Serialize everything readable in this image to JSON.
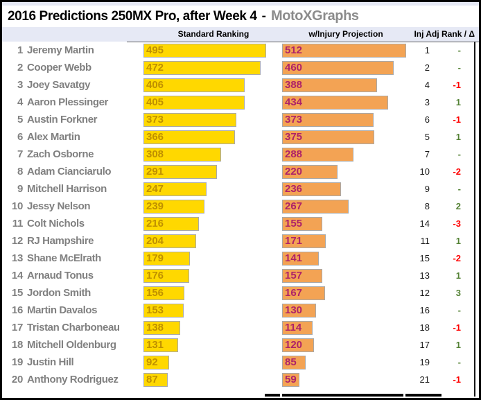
{
  "header": {
    "title_main": "2016 Predictions 250MX Pro, after Week 4",
    "title_separator": "-",
    "title_brand": "MotoXGraphs"
  },
  "columns": {
    "standard": "Standard Ranking",
    "injury": "w/Injury Projection",
    "adj": "Inj Adj Rank / Δ"
  },
  "colors": {
    "standard_bar": "#FFD800",
    "standard_value": "#BF9000",
    "injury_bar": "#F3A354",
    "injury_value": "#AE2268",
    "name_text": "#808080",
    "delta_positive": "#548235",
    "delta_negative": "#FF0000",
    "header_band": "#E6E9F5",
    "brand_text": "#8C8C8C"
  },
  "rows": [
    {
      "rank": 1,
      "name": "Jeremy Martin",
      "standard": 495,
      "injury": 512,
      "adj_rank": 1,
      "delta": "-"
    },
    {
      "rank": 2,
      "name": "Cooper Webb",
      "standard": 472,
      "injury": 460,
      "adj_rank": 2,
      "delta": "-"
    },
    {
      "rank": 3,
      "name": "Joey Savatgy",
      "standard": 406,
      "injury": 388,
      "adj_rank": 4,
      "delta": "-1"
    },
    {
      "rank": 4,
      "name": "Aaron Plessinger",
      "standard": 405,
      "injury": 434,
      "adj_rank": 3,
      "delta": "1"
    },
    {
      "rank": 5,
      "name": "Austin Forkner",
      "standard": 373,
      "injury": 373,
      "adj_rank": 6,
      "delta": "-1"
    },
    {
      "rank": 6,
      "name": "Alex Martin",
      "standard": 366,
      "injury": 375,
      "adj_rank": 5,
      "delta": "1"
    },
    {
      "rank": 7,
      "name": "Zach Osborne",
      "standard": 308,
      "injury": 288,
      "adj_rank": 7,
      "delta": "-"
    },
    {
      "rank": 8,
      "name": "Adam Cianciarulo",
      "standard": 291,
      "injury": 220,
      "adj_rank": 10,
      "delta": "-2"
    },
    {
      "rank": 9,
      "name": "Mitchell Harrison",
      "standard": 247,
      "injury": 236,
      "adj_rank": 9,
      "delta": "-"
    },
    {
      "rank": 10,
      "name": "Jessy Nelson",
      "standard": 239,
      "injury": 267,
      "adj_rank": 8,
      "delta": "2"
    },
    {
      "rank": 11,
      "name": "Colt Nichols",
      "standard": 216,
      "injury": 155,
      "adj_rank": 14,
      "delta": "-3"
    },
    {
      "rank": 12,
      "name": "RJ Hampshire",
      "standard": 204,
      "injury": 171,
      "adj_rank": 11,
      "delta": "1"
    },
    {
      "rank": 13,
      "name": "Shane McElrath",
      "standard": 179,
      "injury": 141,
      "adj_rank": 15,
      "delta": "-2"
    },
    {
      "rank": 14,
      "name": "Arnaud Tonus",
      "standard": 176,
      "injury": 157,
      "adj_rank": 13,
      "delta": "1"
    },
    {
      "rank": 15,
      "name": "Jordon Smith",
      "standard": 156,
      "injury": 167,
      "adj_rank": 12,
      "delta": "3"
    },
    {
      "rank": 16,
      "name": "Martin Davalos",
      "standard": 153,
      "injury": 130,
      "adj_rank": 16,
      "delta": "-"
    },
    {
      "rank": 17,
      "name": "Tristan Charboneau",
      "standard": 138,
      "injury": 114,
      "adj_rank": 18,
      "delta": "-1"
    },
    {
      "rank": 18,
      "name": "Mitchell Oldenburg",
      "standard": 131,
      "injury": 120,
      "adj_rank": 17,
      "delta": "1"
    },
    {
      "rank": 19,
      "name": "Justin Hill",
      "standard": 92,
      "injury": 85,
      "adj_rank": 19,
      "delta": "-"
    },
    {
      "rank": 20,
      "name": "Anthony Rodriguez",
      "standard": 87,
      "injury": 59,
      "adj_rank": 21,
      "delta": "-1"
    }
  ],
  "chart_data": {
    "type": "bar",
    "orientation": "horizontal",
    "title": "2016 Predictions 250MX Pro, after Week 4 - MotoXGraphs",
    "categories": [
      "Jeremy Martin",
      "Cooper Webb",
      "Joey Savatgy",
      "Aaron Plessinger",
      "Austin Forkner",
      "Alex Martin",
      "Zach Osborne",
      "Adam Cianciarulo",
      "Mitchell Harrison",
      "Jessy Nelson",
      "Colt Nichols",
      "RJ Hampshire",
      "Shane McElrath",
      "Arnaud Tonus",
      "Jordon Smith",
      "Martin Davalos",
      "Tristan Charboneau",
      "Mitchell Oldenburg",
      "Justin Hill",
      "Anthony Rodriguez"
    ],
    "series": [
      {
        "name": "Standard Ranking",
        "color": "#FFD800",
        "values": [
          495,
          472,
          406,
          405,
          373,
          366,
          308,
          291,
          247,
          239,
          216,
          204,
          179,
          176,
          156,
          153,
          138,
          131,
          92,
          87
        ]
      },
      {
        "name": "w/Injury Projection",
        "color": "#F3A354",
        "values": [
          512,
          460,
          388,
          434,
          373,
          375,
          288,
          220,
          236,
          267,
          155,
          171,
          141,
          157,
          167,
          130,
          114,
          120,
          85,
          59
        ]
      }
    ],
    "annotations": {
      "inj_adj_rank": [
        1,
        2,
        4,
        3,
        6,
        5,
        7,
        10,
        9,
        8,
        14,
        11,
        15,
        13,
        12,
        16,
        18,
        17,
        19,
        21
      ],
      "delta": [
        "-",
        "-",
        "-1",
        "1",
        "-1",
        "1",
        "-",
        "-2",
        "-",
        "2",
        "-3",
        "1",
        "-2",
        "1",
        "3",
        "-",
        "-1",
        "1",
        "-",
        "-1"
      ]
    },
    "xlim": [
      0,
      520
    ],
    "grid": false,
    "legend_position": "column-headers",
    "data_labels": "inside-bar-left"
  }
}
